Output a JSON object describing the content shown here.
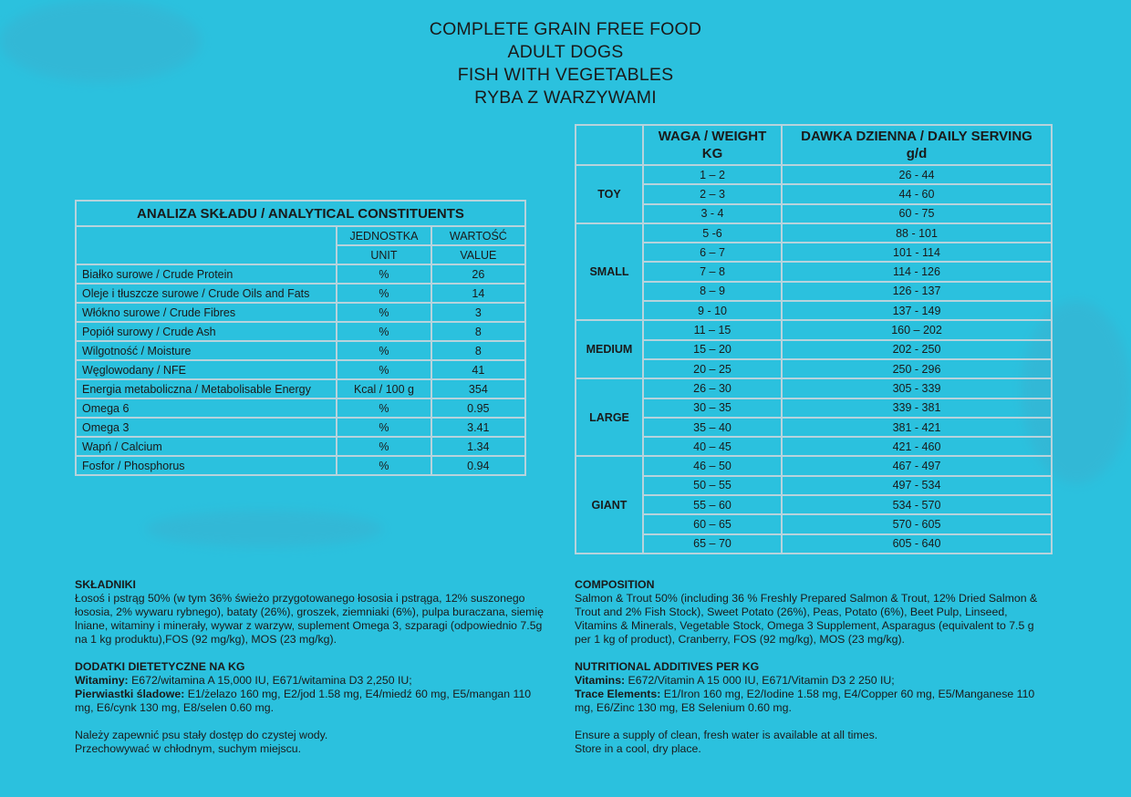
{
  "header": {
    "lines": [
      "COMPLETE GRAIN FREE FOOD",
      "ADULT DOGS",
      "FISH WITH VEGETABLES",
      "RYBA Z WARZYWAMI"
    ]
  },
  "analysis": {
    "title": "ANALIZA SKŁADU / ANALYTICAL CONSTITUENTS",
    "unit_header": [
      "JEDNOSTKA",
      "UNIT"
    ],
    "value_header": [
      "WARTOŚĆ",
      "VALUE"
    ],
    "rows": [
      {
        "name": "Białko surowe / Crude Protein",
        "unit": "%",
        "value": "26"
      },
      {
        "name": "Oleje i tłuszcze surowe / Crude Oils and Fats",
        "unit": "%",
        "value": "14"
      },
      {
        "name": "Włókno surowe / Crude Fibres",
        "unit": "%",
        "value": "3"
      },
      {
        "name": "Popiół surowy / Crude Ash",
        "unit": "%",
        "value": "8"
      },
      {
        "name": "Wilgotność / Moisture",
        "unit": "%",
        "value": "8"
      },
      {
        "name": "Węglowodany / NFE",
        "unit": "%",
        "value": "41"
      },
      {
        "name": "Energia metaboliczna / Metabolisable Energy",
        "unit": "Kcal / 100 g",
        "value": "354"
      },
      {
        "name": "Omega 6",
        "unit": "%",
        "value": "0.95"
      },
      {
        "name": "Omega 3",
        "unit": "%",
        "value": "3.41"
      },
      {
        "name": "Wapń / Calcium",
        "unit": "%",
        "value": "1.34"
      },
      {
        "name": "Fosfor / Phosphorus",
        "unit": "%",
        "value": "0.94"
      }
    ]
  },
  "serving": {
    "weight_header": [
      "WAGA / WEIGHT",
      "KG"
    ],
    "serving_header": [
      "DAWKA DZIENNA / DAILY SERVING",
      "g/d"
    ],
    "groups": [
      {
        "name": "TOY",
        "rows": [
          [
            "1 – 2",
            "26 - 44"
          ],
          [
            "2 – 3",
            "44 - 60"
          ],
          [
            "3 - 4",
            "60 - 75"
          ]
        ]
      },
      {
        "name": "SMALL",
        "rows": [
          [
            "5 -6",
            "88 - 101"
          ],
          [
            "6 – 7",
            "101 - 114"
          ],
          [
            "7 – 8",
            "114 - 126"
          ],
          [
            "8 – 9",
            "126 - 137"
          ],
          [
            "9 - 10",
            "137 - 149"
          ]
        ]
      },
      {
        "name": "MEDIUM",
        "rows": [
          [
            "11 – 15",
            "160 – 202"
          ],
          [
            "15 – 20",
            "202 - 250"
          ],
          [
            "20 – 25",
            "250 - 296"
          ]
        ]
      },
      {
        "name": "LARGE",
        "rows": [
          [
            "26 – 30",
            "305 - 339"
          ],
          [
            "30 – 35",
            "339 - 381"
          ],
          [
            "35 – 40",
            "381 - 421"
          ],
          [
            "40 – 45",
            "421 - 460"
          ]
        ]
      },
      {
        "name": "GIANT",
        "rows": [
          [
            "46 – 50",
            "467 - 497"
          ],
          [
            "50 – 55",
            "497 - 534"
          ],
          [
            "55 – 60",
            "534 - 570"
          ],
          [
            "60 – 65",
            "570 - 605"
          ],
          [
            "65 – 70",
            "605 - 640"
          ]
        ]
      }
    ]
  },
  "polish": {
    "ingredients_title": "SKŁADNIKI",
    "ingredients": "Łosoś  i pstrąg 50% (w tym 36% świeżo przygotowanego łososia i pstrąga, 12% suszonego łososia, 2% wywaru rybnego), bataty (26%), groszek, ziemniaki (6%),  pulpa buraczana, siemię lniane, witaminy i minerały, wywar z warzyw, suplement Omega 3, szparagi (odpowiednio 7.5g na 1 kg produktu),FOS (92 mg/kg), MOS (23 mg/kg).",
    "additives_title": "DODATKI DIETETYCZNE NA KG",
    "vitamins_label": "Witaminy:",
    "vitamins": " E672/witamina A 15,000 IU, E671/witamina D3 2,250 IU;",
    "trace_label": "Pierwiastki śladowe:",
    "trace": " E1/żelazo 160 mg, E2/jod 1.58 mg, E4/miedź 60 mg, E5/mangan 110 mg, E6/cynk 130 mg, E8/selen 0.60 mg.",
    "water": "Należy zapewnić psu stały dostęp do czystej wody.",
    "storage": "Przechowywać w chłodnym, suchym miejscu."
  },
  "english": {
    "ingredients_title": "COMPOSITION",
    "ingredients": "Salmon & Trout 50% (including 36 % Freshly Prepared Salmon & Trout, 12% Dried Salmon & Trout and 2% Fish Stock), Sweet Potato (26%), Peas, Potato (6%), Beet Pulp, Linseed, Vitamins & Minerals, Vegetable Stock, Omega 3 Supplement, Asparagus (equivalent to 7.5 g per 1 kg of product), Cranberry, FOS (92 mg/kg), MOS (23 mg/kg).",
    "additives_title": "NUTRITIONAL ADDITIVES PER KG",
    "vitamins_label": "Vitamins:",
    "vitamins": " E672/Vitamin A 15 000 IU, E671/Vitamin D3 2 250 IU;",
    "trace_label": "Trace Elements:",
    "trace": " E1/Iron 160 mg, E2/Iodine 1.58 mg, E4/Copper 60 mg, E5/Manganese 110 mg, E6/Zinc 130 mg, E8 Selenium 0.60 mg.",
    "water": "Ensure a supply of clean, fresh water is available at all times.",
    "storage": "Store in a cool, dry place."
  }
}
